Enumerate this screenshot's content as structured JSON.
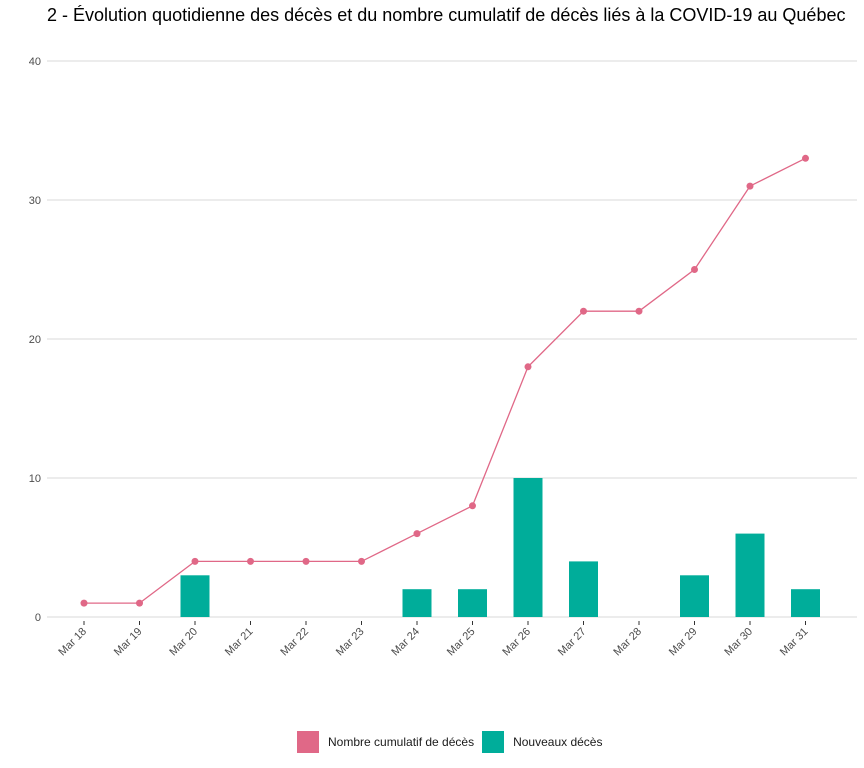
{
  "chart_data": {
    "type": "bar",
    "title": "2 - Évolution quotidienne des décès et du nombre cumulatif de décès liés à la COVID-19 au Québec",
    "xlabel": "",
    "ylabel": "",
    "categories": [
      "Mar 18",
      "Mar 19",
      "Mar 20",
      "Mar 21",
      "Mar 22",
      "Mar 23",
      "Mar 24",
      "Mar 25",
      "Mar 26",
      "Mar 27",
      "Mar 28",
      "Mar 29",
      "Mar 30",
      "Mar 31"
    ],
    "ylim": [
      0,
      40
    ],
    "yticks": [
      0,
      10,
      20,
      30,
      40
    ],
    "grid": true,
    "legend_position": "bottom",
    "series": [
      {
        "name": "Nombre cumulatif de décès",
        "type": "line",
        "color": "#e06887",
        "values": [
          1,
          1,
          4,
          4,
          4,
          4,
          6,
          8,
          18,
          22,
          22,
          25,
          31,
          33
        ]
      },
      {
        "name": "Nouveaux décès",
        "type": "bar",
        "color": "#00ad9a",
        "values": [
          0,
          0,
          3,
          0,
          0,
          0,
          2,
          2,
          10,
          4,
          0,
          3,
          6,
          2
        ]
      }
    ]
  }
}
